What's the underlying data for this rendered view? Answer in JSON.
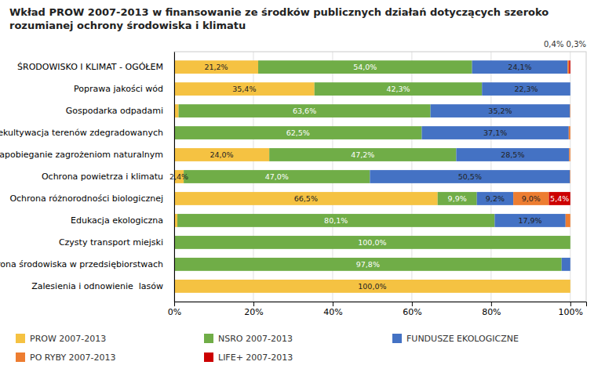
{
  "chart_data": {
    "type": "bar",
    "orientation": "horizontal",
    "stacked": true,
    "title": "Wkład PROW 2007-2013 w finansowanie ze środków publicznych działań dotyczących szeroko rozumianej ochrony środowiska i klimatu",
    "categories": [
      "ŚRODOWISKO I KLIMAT - OGÓŁEM",
      "Poprawa jakości wód",
      "Gospodarka odpadami",
      "Rekultywacja terenów zdegradowanych",
      "Zapobieganie zagrożeniom naturalnym",
      "Ochrona powietrza i klimatu",
      "Ochrona różnorodności biologicznej",
      "Edukacja ekologiczna",
      "Czysty transport miejski",
      "Ochrona środowiska w przedsiębiorstwach",
      "Zalesienia i odnowienie  lasów"
    ],
    "series": [
      {
        "name": "PROW 2007-2013",
        "color": "#F5C242",
        "values": [
          21.2,
          35.4,
          1.1,
          0.0,
          24.0,
          2.4,
          66.5,
          0.8,
          0.0,
          0.0,
          100.0
        ],
        "value_labels": [
          "21,2%",
          "35,4%",
          null,
          null,
          "24,0%",
          "2,4%",
          "66,5%",
          null,
          null,
          null,
          "100,0%"
        ]
      },
      {
        "name": "NSRO 2007-2013",
        "color": "#70AD47",
        "values": [
          54.0,
          42.3,
          63.6,
          62.5,
          47.2,
          47.0,
          9.9,
          80.1,
          100.0,
          97.8,
          0.0
        ],
        "value_labels": [
          "54,0%",
          "42,3%",
          "63,6%",
          "62,5%",
          "47,2%",
          "47,0%",
          "9,9%",
          "80,1%",
          "100,0%",
          "97,8%",
          null
        ]
      },
      {
        "name": "FUNDUSZE EKOLOGICZNE",
        "color": "#4472C4",
        "values": [
          24.1,
          22.3,
          35.2,
          37.1,
          28.5,
          50.5,
          9.2,
          17.9,
          0.0,
          2.2,
          0.0
        ],
        "value_labels": [
          "24,1%",
          "22,3%",
          "35,2%",
          "37,1%",
          "28,5%",
          "50,5%",
          "9,2%",
          "17,9%",
          null,
          null,
          null
        ]
      },
      {
        "name": "PO RYBY 2007-2013",
        "color": "#ED7D31",
        "values": [
          0.4,
          0.0,
          0.1,
          0.4,
          0.3,
          0.1,
          9.0,
          1.2,
          0.0,
          0.0,
          0.0
        ],
        "value_labels": [
          null,
          null,
          null,
          null,
          null,
          null,
          "9,0%",
          null,
          null,
          null,
          null
        ]
      },
      {
        "name": "LIFE+ 2007-2013",
        "color": "#CC0000",
        "values": [
          0.3,
          0.0,
          0.0,
          0.0,
          0.0,
          0.0,
          5.4,
          0.0,
          0.0,
          0.0,
          0.0
        ],
        "value_labels": [
          null,
          null,
          null,
          null,
          null,
          null,
          "5,4%",
          null,
          null,
          null,
          null
        ]
      }
    ],
    "xlim": [
      0,
      104
    ],
    "xticks": [
      {
        "value": 0,
        "label": "0%"
      },
      {
        "value": 20,
        "label": "20%"
      },
      {
        "value": 40,
        "label": "40%"
      },
      {
        "value": 60,
        "label": "60%"
      },
      {
        "value": 80,
        "label": "80%"
      },
      {
        "value": 100,
        "label": "100%"
      }
    ],
    "grid": true,
    "data_labels": true,
    "legend": "bottom",
    "annotations": [
      "0,4% 0,3%"
    ]
  }
}
